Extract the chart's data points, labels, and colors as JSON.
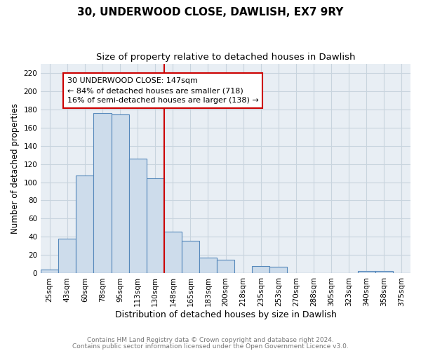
{
  "title1": "30, UNDERWOOD CLOSE, DAWLISH, EX7 9RY",
  "title2": "Size of property relative to detached houses in Dawlish",
  "xlabel": "Distribution of detached houses by size in Dawlish",
  "ylabel": "Number of detached properties",
  "footnote1": "Contains HM Land Registry data © Crown copyright and database right 2024.",
  "footnote2": "Contains public sector information licensed under the Open Government Licence v3.0.",
  "bar_labels": [
    "25sqm",
    "43sqm",
    "60sqm",
    "78sqm",
    "95sqm",
    "113sqm",
    "130sqm",
    "148sqm",
    "165sqm",
    "183sqm",
    "200sqm",
    "218sqm",
    "235sqm",
    "253sqm",
    "270sqm",
    "288sqm",
    "305sqm",
    "323sqm",
    "340sqm",
    "358sqm",
    "375sqm"
  ],
  "bar_values": [
    4,
    38,
    107,
    176,
    174,
    126,
    104,
    46,
    36,
    17,
    15,
    0,
    8,
    7,
    0,
    0,
    0,
    0,
    3,
    3,
    0
  ],
  "bar_color": "#cddceb",
  "bar_edge_color": "#5588bb",
  "annotation_line1": "30 UNDERWOOD CLOSE: 147sqm",
  "annotation_line2": "← 84% of detached houses are smaller (718)",
  "annotation_line3": "16% of semi-detached houses are larger (138) →",
  "vline_index": 7,
  "vline_color": "#cc0000",
  "annotation_box_color": "#ffffff",
  "annotation_box_edge": "#cc0000",
  "ylim": [
    0,
    230
  ],
  "yticks": [
    0,
    20,
    40,
    60,
    80,
    100,
    120,
    140,
    160,
    180,
    200,
    220
  ],
  "grid_color": "#c8d4de",
  "background_color": "#e8eef4",
  "title1_fontsize": 11,
  "title2_fontsize": 9.5,
  "xlabel_fontsize": 9,
  "ylabel_fontsize": 8.5,
  "tick_fontsize": 7.5,
  "footnote_fontsize": 6.5,
  "footnote_color": "#777777"
}
